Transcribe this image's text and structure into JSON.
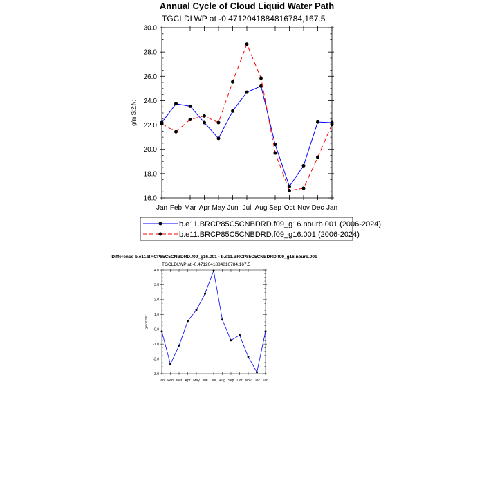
{
  "chart_data": [
    {
      "type": "line",
      "title": "Annual Cycle of Cloud Liquid Water Path",
      "subtitle": "TGCLDLWP at -0.4712041884816784,167.5",
      "ylabel": "g/m:S:2:N:",
      "xlabel": "",
      "categories": [
        "Jan",
        "Feb",
        "Mar",
        "Apr",
        "May",
        "Jun",
        "Jul",
        "Aug",
        "Sep",
        "Oct",
        "Nov",
        "Dec",
        "Jan"
      ],
      "ylim": [
        16.0,
        30.0
      ],
      "yticks": [
        16.0,
        18.0,
        20.0,
        22.0,
        24.0,
        26.0,
        28.0,
        30.0
      ],
      "ytick_labels": [
        "16.0",
        "18.0",
        "20.0",
        "22.0",
        "24.0",
        "26.0",
        "28.0",
        "30.0"
      ],
      "grid": false,
      "legend_position": "bottom",
      "series": [
        {
          "name": "b.e11.BRCP85C5CNBDRD.f09_g16.nourb.001 (2006-2024)",
          "color": "#0000ff",
          "dash": "solid",
          "values": [
            22.2,
            23.75,
            23.55,
            22.2,
            20.9,
            23.15,
            24.7,
            25.2,
            20.4,
            16.95,
            18.65,
            22.25,
            22.2
          ]
        },
        {
          "name": "b.e11.BRCP85C5CNBDRD.f09_g16.001 (2006-2024)",
          "color": "#ff0000",
          "dash": "dashed",
          "values": [
            22.1,
            21.45,
            22.45,
            22.75,
            22.2,
            25.55,
            28.65,
            25.85,
            19.7,
            16.6,
            16.8,
            19.35,
            22.05
          ]
        }
      ]
    },
    {
      "type": "line",
      "title": "Difference b.e11.BRCP85C5CNBDRD.f09_g16.001 - b.e11.BRCP85C5CNBDRD.f09_g16.nourb.001",
      "subtitle": "TGCLDLWP at -0.4712041884816784,167.5",
      "ylabel": "g/m:S:2:N:",
      "xlabel": "",
      "categories": [
        "Jan",
        "Feb",
        "Mar",
        "Apr",
        "May",
        "Jun",
        "Jul",
        "Aug",
        "Sep",
        "Oct",
        "Nov",
        "Dec",
        "Jan"
      ],
      "ylim": [
        -3.0,
        4.0
      ],
      "yticks": [
        -3.0,
        -2.0,
        -1.0,
        0.0,
        1.0,
        2.0,
        3.0,
        4.0
      ],
      "ytick_labels": [
        "-3.0",
        "-2.0",
        "-1.0",
        "0.0",
        "1.0",
        "2.0",
        "3.0",
        "4.0"
      ],
      "grid": false,
      "series": [
        {
          "color": "#0000ff",
          "dash": "solid",
          "values": [
            -0.15,
            -2.35,
            -1.1,
            0.55,
            1.3,
            2.4,
            3.95,
            0.65,
            -0.75,
            -0.4,
            -1.85,
            -2.9,
            -0.15
          ]
        }
      ]
    }
  ]
}
